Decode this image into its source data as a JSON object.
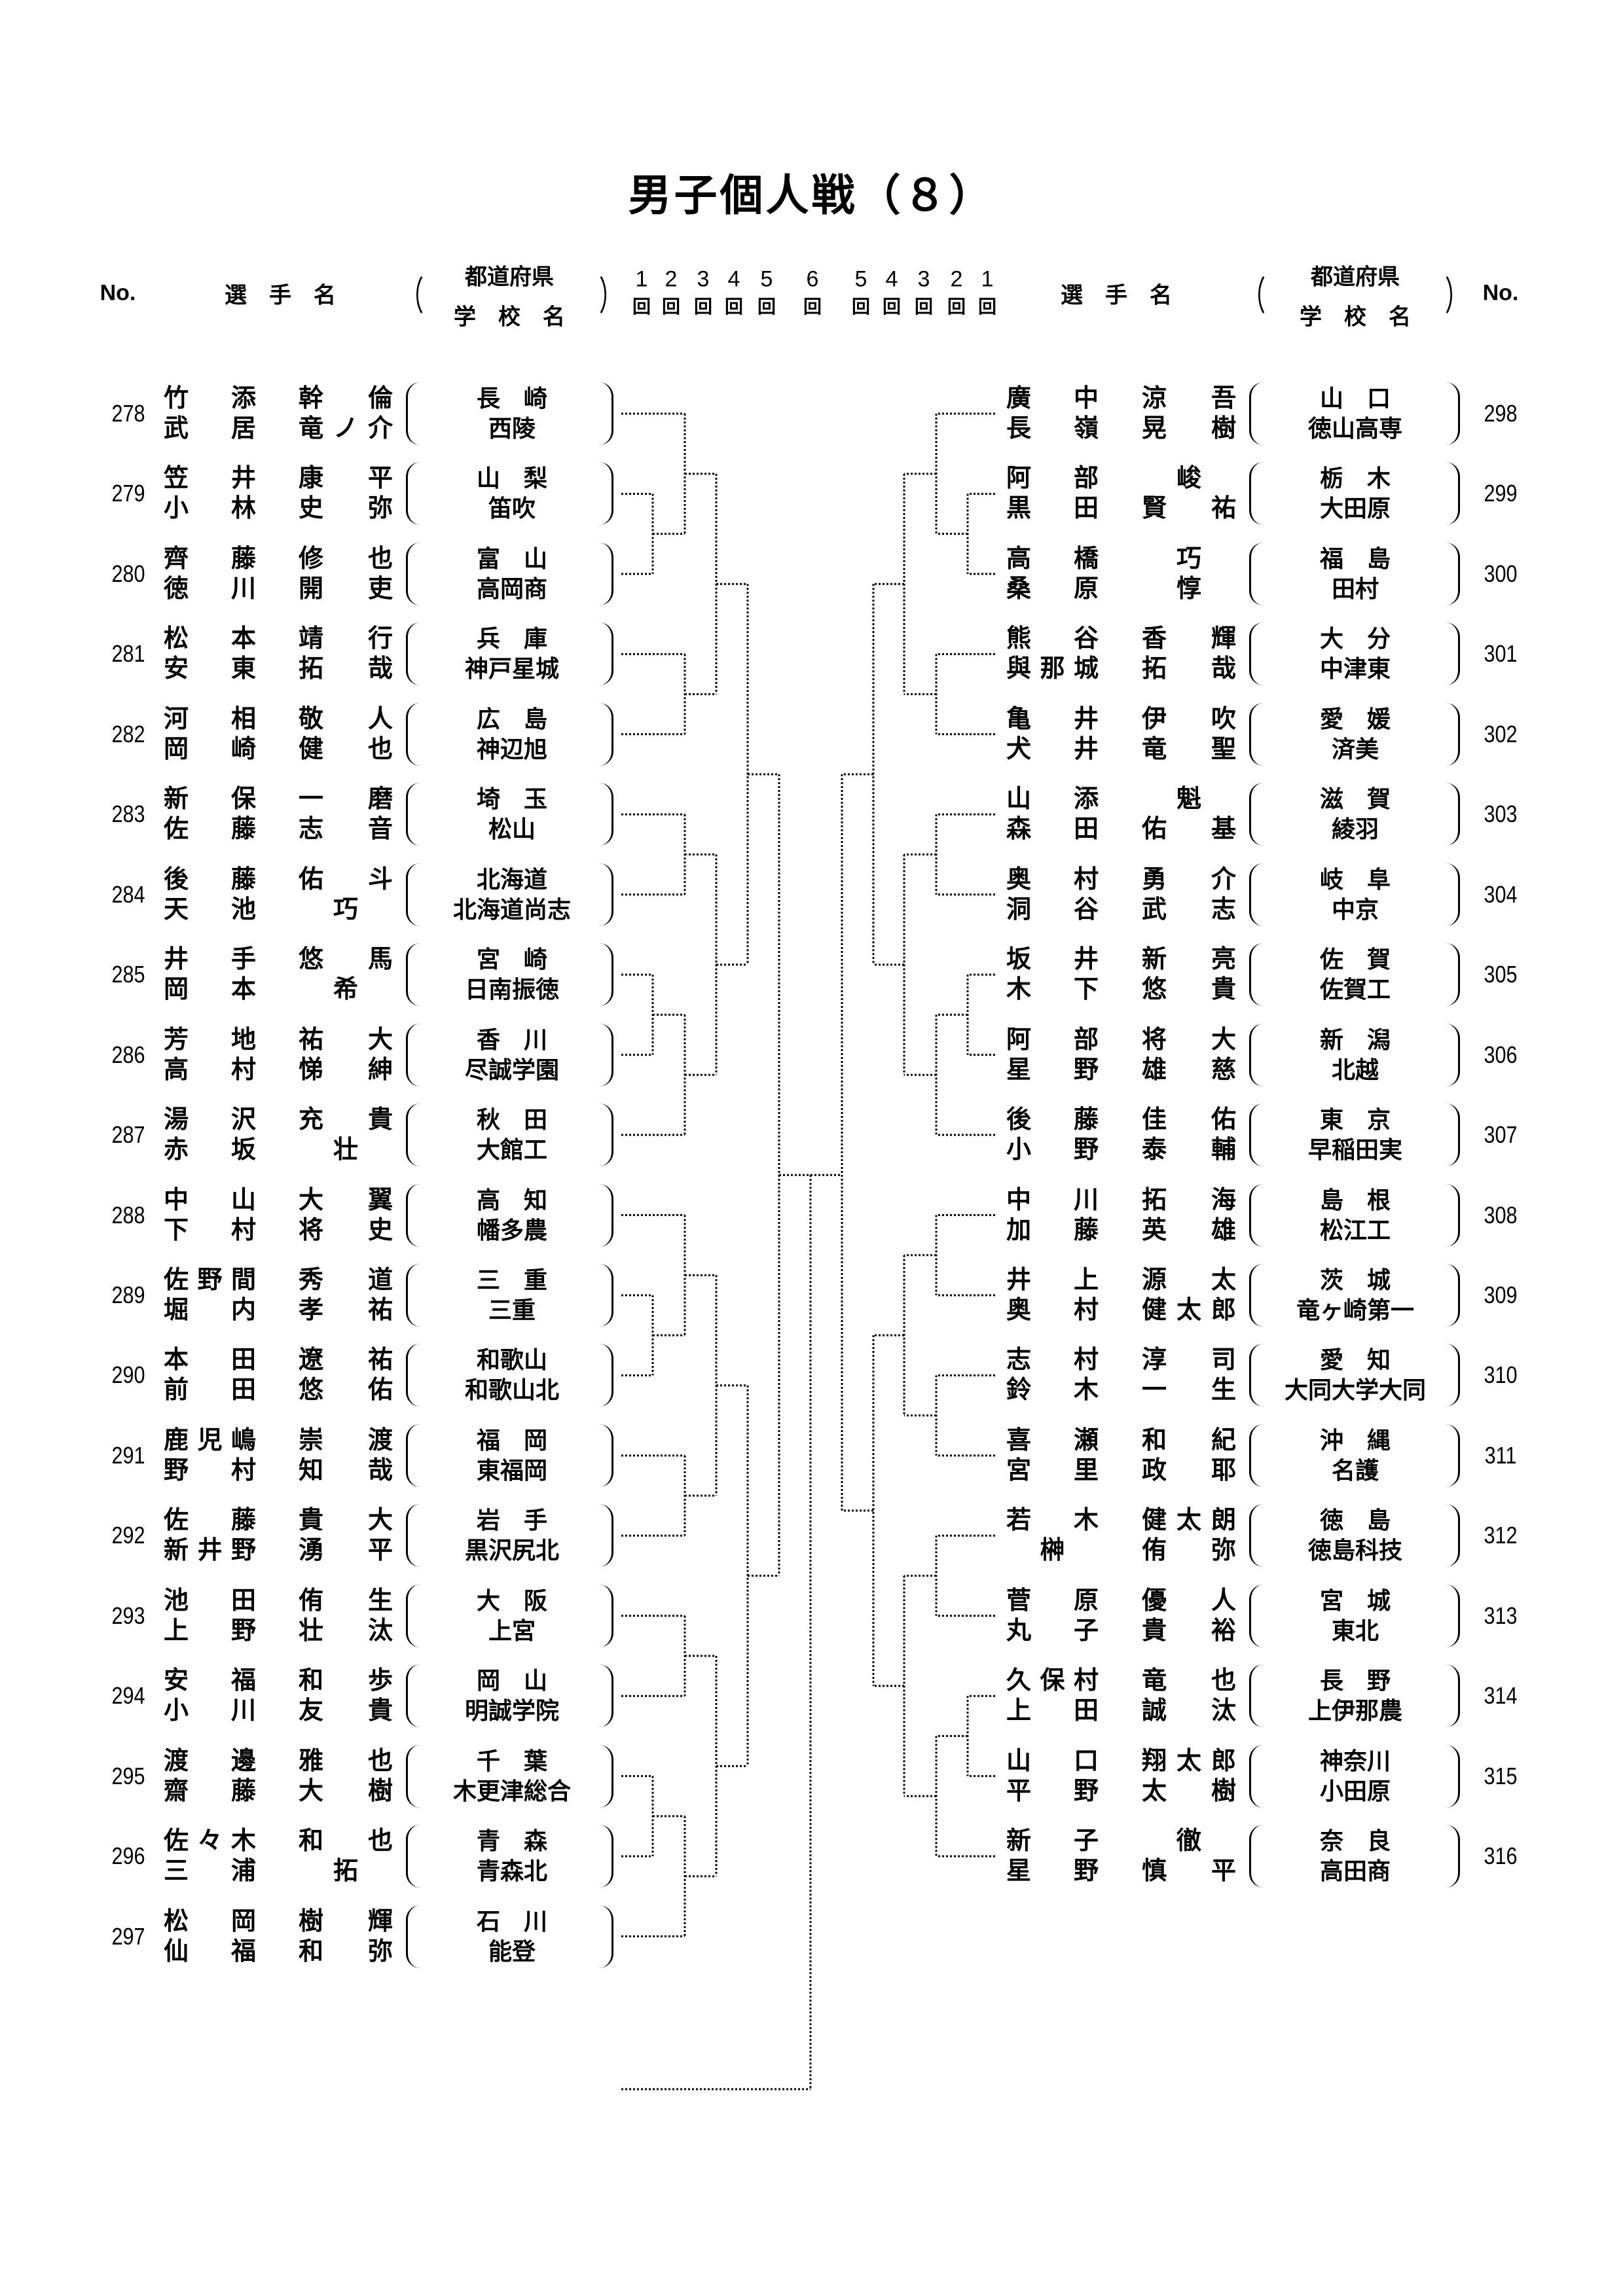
{
  "title": "男子個人戦（８）",
  "header": {
    "no": "No.",
    "player_name": "選　手　名",
    "prefecture": "都道府県",
    "school": "学　校　名",
    "paren_open": "（",
    "paren_close": "）",
    "rounds_left": [
      "1",
      "2",
      "3",
      "4",
      "5"
    ],
    "round_final": "6",
    "rounds_right": [
      "5",
      "4",
      "3",
      "2",
      "1"
    ],
    "round_unit": "回"
  },
  "left_entries": [
    {
      "no": "278",
      "players": [
        {
          "family": "竹添",
          "given": "幹倫"
        },
        {
          "family": "武居",
          "given": "竜ノ介"
        }
      ],
      "prefecture": "長　崎",
      "school": "西陵"
    },
    {
      "no": "279",
      "players": [
        {
          "family": "笠井",
          "given": "康平"
        },
        {
          "family": "小林",
          "given": "史弥"
        }
      ],
      "prefecture": "山　梨",
      "school": "笛吹"
    },
    {
      "no": "280",
      "players": [
        {
          "family": "齊藤",
          "given": "修也"
        },
        {
          "family": "徳川",
          "given": "開吏"
        }
      ],
      "prefecture": "富　山",
      "school": "高岡商"
    },
    {
      "no": "281",
      "players": [
        {
          "family": "松本",
          "given": "靖行"
        },
        {
          "family": "安東",
          "given": "拓哉"
        }
      ],
      "prefecture": "兵　庫",
      "school": "神戸星城"
    },
    {
      "no": "282",
      "players": [
        {
          "family": "河相",
          "given": "敬人"
        },
        {
          "family": "岡崎",
          "given": "健也"
        }
      ],
      "prefecture": "広　島",
      "school": "神辺旭"
    },
    {
      "no": "283",
      "players": [
        {
          "family": "新保",
          "given": "一磨"
        },
        {
          "family": "佐藤",
          "given": "志音"
        }
      ],
      "prefecture": "埼　玉",
      "school": "松山"
    },
    {
      "no": "284",
      "players": [
        {
          "family": "後藤",
          "given": "佑斗"
        },
        {
          "family": "天池",
          "given": "巧"
        }
      ],
      "prefecture": "北海道",
      "school": "北海道尚志"
    },
    {
      "no": "285",
      "players": [
        {
          "family": "井手",
          "given": "悠馬"
        },
        {
          "family": "岡本",
          "given": "希"
        }
      ],
      "prefecture": "宮　崎",
      "school": "日南振徳"
    },
    {
      "no": "286",
      "players": [
        {
          "family": "芳地",
          "given": "祐大"
        },
        {
          "family": "高村",
          "given": "悌紳"
        }
      ],
      "prefecture": "香　川",
      "school": "尽誠学園"
    },
    {
      "no": "287",
      "players": [
        {
          "family": "湯沢",
          "given": "充貴"
        },
        {
          "family": "赤坂",
          "given": "壮"
        }
      ],
      "prefecture": "秋　田",
      "school": "大館工"
    },
    {
      "no": "288",
      "players": [
        {
          "family": "中山",
          "given": "大翼"
        },
        {
          "family": "下村",
          "given": "将史"
        }
      ],
      "prefecture": "高　知",
      "school": "幡多農"
    },
    {
      "no": "289",
      "players": [
        {
          "family": "佐野間",
          "given": "秀道"
        },
        {
          "family": "堀内",
          "given": "孝祐"
        }
      ],
      "prefecture": "三　重",
      "school": "三重"
    },
    {
      "no": "290",
      "players": [
        {
          "family": "本田",
          "given": "遼祐"
        },
        {
          "family": "前田",
          "given": "悠佑"
        }
      ],
      "prefecture": "和歌山",
      "school": "和歌山北"
    },
    {
      "no": "291",
      "players": [
        {
          "family": "鹿児嶋",
          "given": "崇渡"
        },
        {
          "family": "野村",
          "given": "知哉"
        }
      ],
      "prefecture": "福　岡",
      "school": "東福岡"
    },
    {
      "no": "292",
      "players": [
        {
          "family": "佐藤",
          "given": "貴大"
        },
        {
          "family": "新井野",
          "given": "湧平"
        }
      ],
      "prefecture": "岩　手",
      "school": "黒沢尻北"
    },
    {
      "no": "293",
      "players": [
        {
          "family": "池田",
          "given": "侑生"
        },
        {
          "family": "上野",
          "given": "壮汰"
        }
      ],
      "prefecture": "大　阪",
      "school": "上宮"
    },
    {
      "no": "294",
      "players": [
        {
          "family": "安福",
          "given": "和歩"
        },
        {
          "family": "小川",
          "given": "友貴"
        }
      ],
      "prefecture": "岡　山",
      "school": "明誠学院"
    },
    {
      "no": "295",
      "players": [
        {
          "family": "渡邊",
          "given": "雅也"
        },
        {
          "family": "齋藤",
          "given": "大樹"
        }
      ],
      "prefecture": "千　葉",
      "school": "木更津総合"
    },
    {
      "no": "296",
      "players": [
        {
          "family": "佐々木",
          "given": "和也"
        },
        {
          "family": "三浦",
          "given": "拓"
        }
      ],
      "prefecture": "青　森",
      "school": "青森北"
    },
    {
      "no": "297",
      "players": [
        {
          "family": "松岡",
          "given": "樹輝"
        },
        {
          "family": "仙福",
          "given": "和弥"
        }
      ],
      "prefecture": "石　川",
      "school": "能登"
    }
  ],
  "right_entries": [
    {
      "no": "298",
      "players": [
        {
          "family": "廣中",
          "given": "涼吾"
        },
        {
          "family": "長嶺",
          "given": "晃樹"
        }
      ],
      "prefecture": "山　口",
      "school": "徳山高専"
    },
    {
      "no": "299",
      "players": [
        {
          "family": "阿部",
          "given": "峻"
        },
        {
          "family": "黒田",
          "given": "賢祐"
        }
      ],
      "prefecture": "栃　木",
      "school": "大田原"
    },
    {
      "no": "300",
      "players": [
        {
          "family": "高橋",
          "given": "巧"
        },
        {
          "family": "桑原",
          "given": "惇"
        }
      ],
      "prefecture": "福　島",
      "school": "田村"
    },
    {
      "no": "301",
      "players": [
        {
          "family": "熊谷",
          "given": "香輝"
        },
        {
          "family": "與那城",
          "given": "拓哉"
        }
      ],
      "prefecture": "大　分",
      "school": "中津東"
    },
    {
      "no": "302",
      "players": [
        {
          "family": "亀井",
          "given": "伊吹"
        },
        {
          "family": "犬井",
          "given": "竜聖"
        }
      ],
      "prefecture": "愛　媛",
      "school": "済美"
    },
    {
      "no": "303",
      "players": [
        {
          "family": "山添",
          "given": "魁"
        },
        {
          "family": "森田",
          "given": "佑基"
        }
      ],
      "prefecture": "滋　賀",
      "school": "綾羽"
    },
    {
      "no": "304",
      "players": [
        {
          "family": "奥村",
          "given": "勇介"
        },
        {
          "family": "洞谷",
          "given": "武志"
        }
      ],
      "prefecture": "岐　阜",
      "school": "中京"
    },
    {
      "no": "305",
      "players": [
        {
          "family": "坂井",
          "given": "新亮"
        },
        {
          "family": "木下",
          "given": "悠貴"
        }
      ],
      "prefecture": "佐　賀",
      "school": "佐賀工"
    },
    {
      "no": "306",
      "players": [
        {
          "family": "阿部",
          "given": "将大"
        },
        {
          "family": "星野",
          "given": "雄慈"
        }
      ],
      "prefecture": "新　潟",
      "school": "北越"
    },
    {
      "no": "307",
      "players": [
        {
          "family": "後藤",
          "given": "佳佑"
        },
        {
          "family": "小野",
          "given": "泰輔"
        }
      ],
      "prefecture": "東　京",
      "school": "早稲田実"
    },
    {
      "no": "308",
      "players": [
        {
          "family": "中川",
          "given": "拓海"
        },
        {
          "family": "加藤",
          "given": "英雄"
        }
      ],
      "prefecture": "島　根",
      "school": "松江工"
    },
    {
      "no": "309",
      "players": [
        {
          "family": "井上",
          "given": "源太"
        },
        {
          "family": "奥村",
          "given": "健太郎"
        }
      ],
      "prefecture": "茨　城",
      "school": "竜ヶ崎第一"
    },
    {
      "no": "310",
      "players": [
        {
          "family": "志村",
          "given": "淳司"
        },
        {
          "family": "鈴木",
          "given": "一生"
        }
      ],
      "prefecture": "愛　知",
      "school": "大同大学大同"
    },
    {
      "no": "311",
      "players": [
        {
          "family": "喜瀬",
          "given": "和紀"
        },
        {
          "family": "宮里",
          "given": "政耶"
        }
      ],
      "prefecture": "沖　縄",
      "school": "名護"
    },
    {
      "no": "312",
      "players": [
        {
          "family": "若木",
          "given": "健太朗"
        },
        {
          "family": "榊",
          "given": "侑弥"
        }
      ],
      "prefecture": "徳　島",
      "school": "徳島科技"
    },
    {
      "no": "313",
      "players": [
        {
          "family": "菅原",
          "given": "優人"
        },
        {
          "family": "丸子",
          "given": "貴裕"
        }
      ],
      "prefecture": "宮　城",
      "school": "東北"
    },
    {
      "no": "314",
      "players": [
        {
          "family": "久保村",
          "given": "竜也"
        },
        {
          "family": "上田",
          "given": "誠汰"
        }
      ],
      "prefecture": "長　野",
      "school": "上伊那農"
    },
    {
      "no": "315",
      "players": [
        {
          "family": "山口",
          "given": "翔太郎"
        },
        {
          "family": "平野",
          "given": "太樹"
        }
      ],
      "prefecture": "神奈川",
      "school": "小田原"
    },
    {
      "no": "316",
      "players": [
        {
          "family": "新子",
          "given": "徹"
        },
        {
          "family": "星野",
          "given": "慎平"
        }
      ],
      "prefecture": "奈　良",
      "school": "高田商"
    }
  ]
}
